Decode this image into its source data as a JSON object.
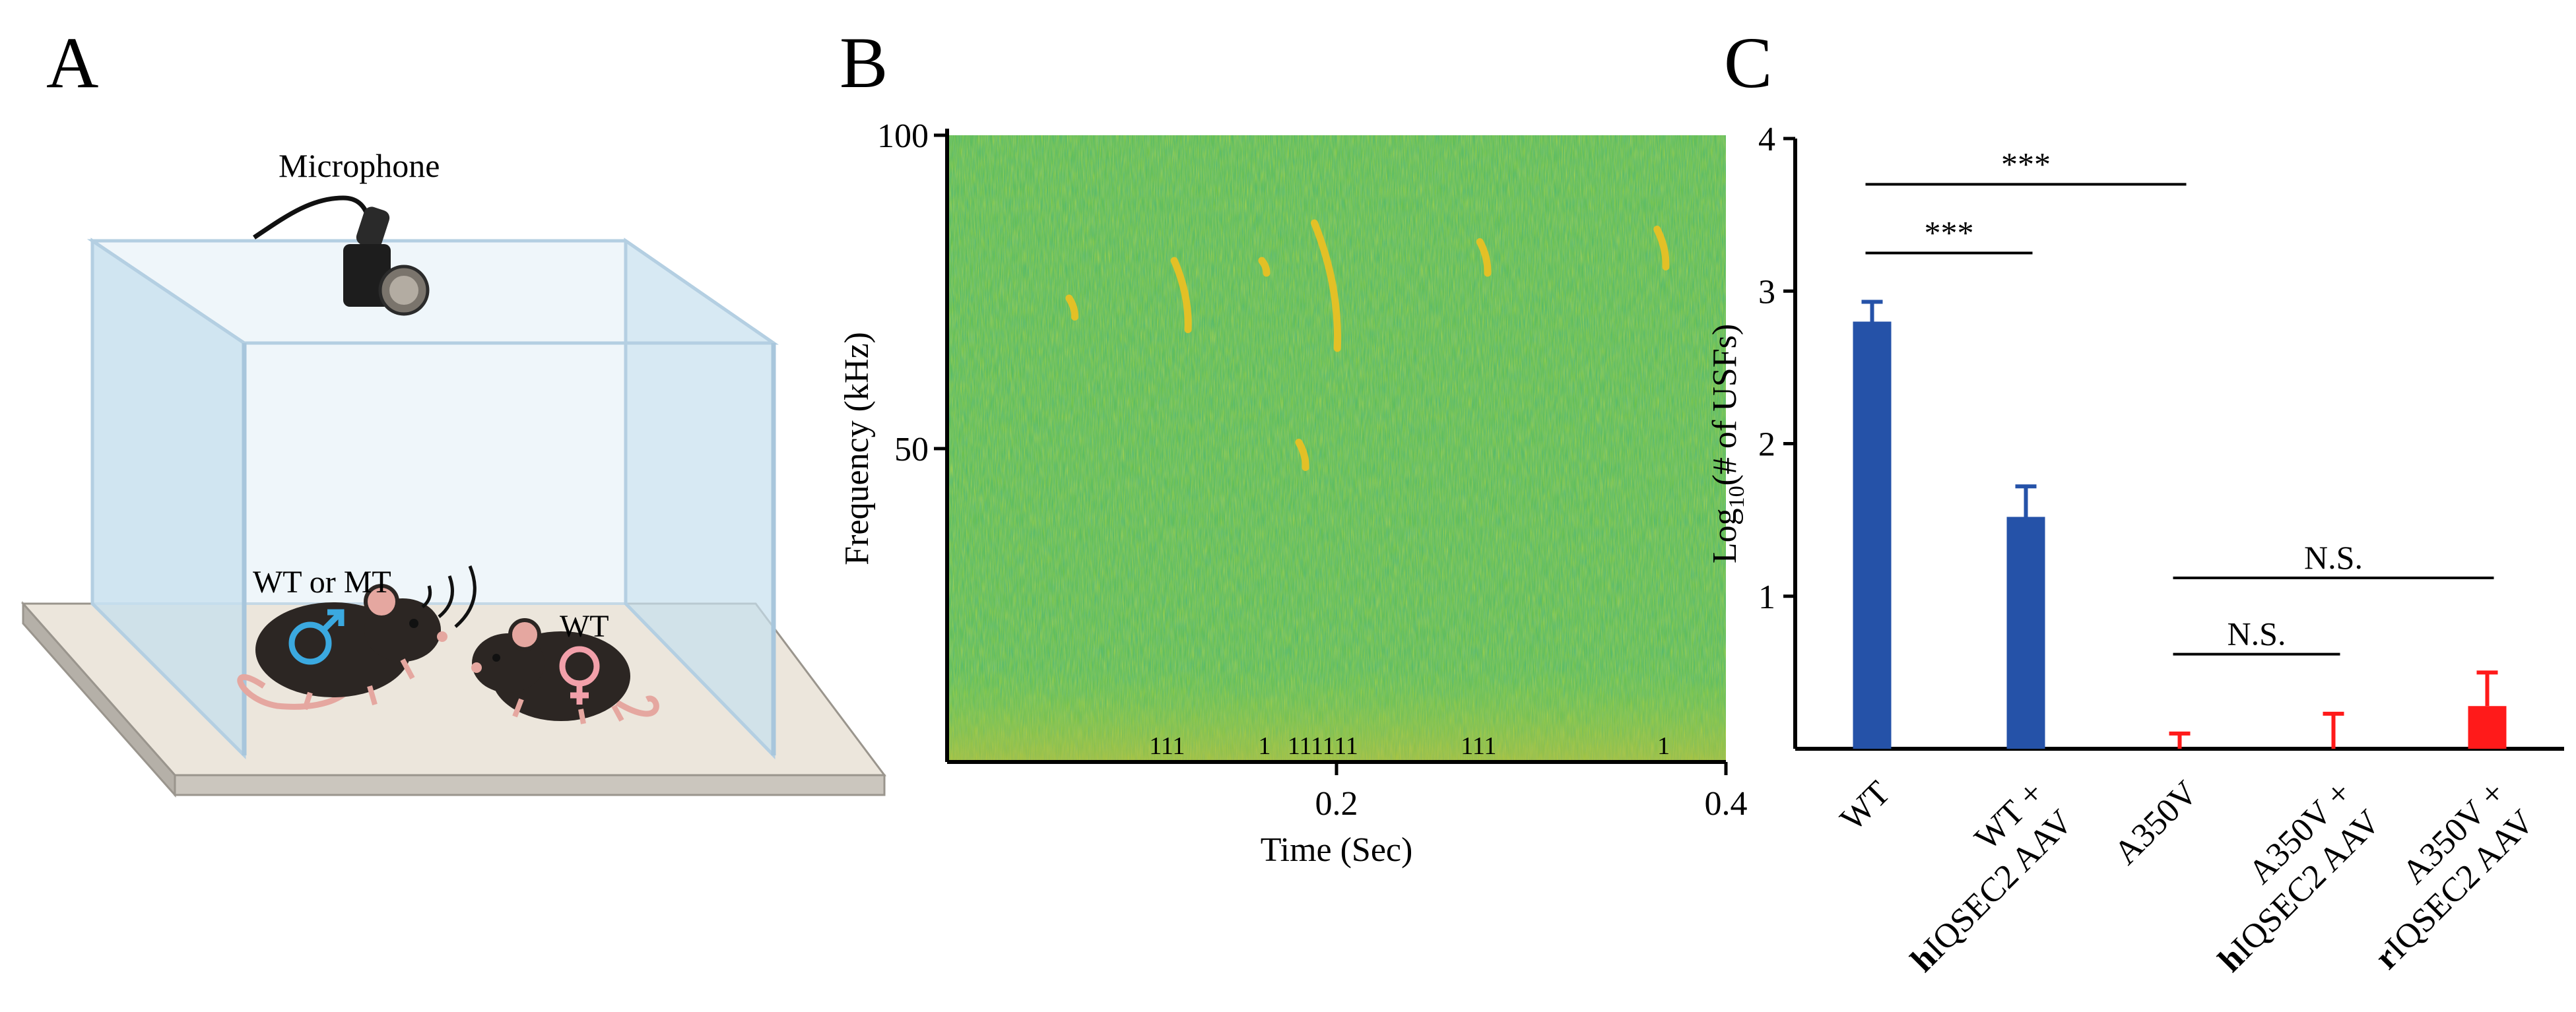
{
  "panels": {
    "a": {
      "letter": "A",
      "microphone_label": "Microphone",
      "male_label": "WT or MT",
      "female_label": "WT"
    },
    "b": {
      "letter": "B"
    },
    "c": {
      "letter": "C"
    }
  },
  "colors": {
    "wt_bar": "#2552a8",
    "a350v_bar": "#ff1a1a",
    "spectrogram_bg": "#6cc14a",
    "syllable": "#f0c020"
  },
  "chart_data": [
    {
      "type": "heatmap",
      "panel": "B",
      "xlabel": "Time (Sec)",
      "ylabel": "Frequency (kHz)",
      "xlim": [
        0,
        0.4
      ],
      "ylim": [
        0,
        100
      ],
      "x_ticks": [
        0.2,
        0.4
      ],
      "x_tick_labels": [
        "0.2",
        "0.4"
      ],
      "y_ticks": [
        50,
        100
      ],
      "y_tick_labels": [
        "50",
        "100"
      ],
      "syllables": [
        {
          "time": 0.064,
          "freq": [
            71,
            74
          ]
        },
        {
          "time": 0.118,
          "freq": [
            69,
            80
          ]
        },
        {
          "time": 0.163,
          "freq": [
            78,
            80
          ]
        },
        {
          "time": 0.19,
          "freq": [
            66,
            86
          ]
        },
        {
          "time": 0.182,
          "freq": [
            47,
            51
          ]
        },
        {
          "time": 0.275,
          "freq": [
            78,
            83
          ]
        },
        {
          "time": 0.366,
          "freq": [
            79,
            85
          ]
        }
      ],
      "event_marks": [
        {
          "time": 0.113,
          "label": "111"
        },
        {
          "time": 0.163,
          "label": "1"
        },
        {
          "time": 0.193,
          "label": "111111"
        },
        {
          "time": 0.273,
          "label": "111"
        },
        {
          "time": 0.368,
          "label": "1"
        }
      ]
    },
    {
      "type": "bar",
      "panel": "C",
      "ylabel_main": "Log",
      "ylabel_sub": "10",
      "ylabel_rest": "(# of USFs)",
      "ylim": [
        0,
        4
      ],
      "y_ticks": [
        1,
        2,
        3,
        4
      ],
      "y_tick_labels": [
        "1",
        "2",
        "3",
        "4"
      ],
      "categories": [
        {
          "line1_bold": "",
          "line1": "WT",
          "line2_bold": "",
          "line2": ""
        },
        {
          "line1_bold": "",
          "line1": "WT +",
          "line2_bold": "h",
          "line2": "IQSEC2 AAV"
        },
        {
          "line1_bold": "",
          "line1": "A350V",
          "line2_bold": "",
          "line2": ""
        },
        {
          "line1_bold": "",
          "line1": "A350V +",
          "line2_bold": "h",
          "line2": "IQSEC2 AAV"
        },
        {
          "line1_bold": "",
          "line1": "A350V +",
          "line2_bold": "r",
          "line2": "IQSEC2 AAV"
        }
      ],
      "values": [
        2.8,
        1.52,
        0.0,
        0.0,
        0.28
      ],
      "errors": [
        0.13,
        0.2,
        0.1,
        0.23,
        0.22
      ],
      "bar_colors": [
        "#2552a8",
        "#2552a8",
        "#ff1a1a",
        "#ff1a1a",
        "#ff1a1a"
      ],
      "significance": [
        {
          "from": 0,
          "to": 2,
          "label": "***",
          "y": 3.7
        },
        {
          "from": 0,
          "to": 1,
          "label": "***",
          "y": 3.25
        },
        {
          "from": 2,
          "to": 4,
          "label": "N.S.",
          "y": 1.12
        },
        {
          "from": 2,
          "to": 3,
          "label": "N.S.",
          "y": 0.62
        }
      ]
    }
  ]
}
